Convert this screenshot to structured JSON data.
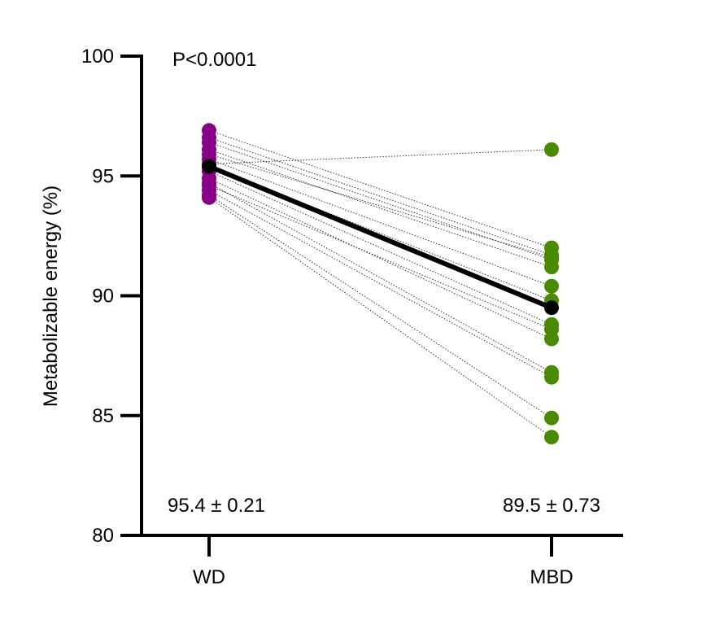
{
  "chart_data": {
    "type": "scatter",
    "subtype": "paired before-after",
    "categories": [
      "WD",
      "MBD"
    ],
    "ylabel": "Metabolizable energy (%)",
    "ylim": [
      80,
      100
    ],
    "yticks": [
      80,
      85,
      90,
      95,
      100
    ],
    "grid": false,
    "annotation": "P<0.0001",
    "summary_labels": [
      "95.4 ± 0.21",
      "89.5 ± 0.73"
    ],
    "means": [
      95.4,
      89.5
    ],
    "pairs": {
      "WD": [
        96.9,
        96.6,
        96.4,
        96.1,
        95.9,
        95.7,
        95.5,
        95.4,
        95.2,
        94.9,
        94.7,
        94.6,
        94.4,
        94.2,
        94.1
      ],
      "MBD": [
        92.0,
        91.7,
        91.5,
        91.2,
        91.6,
        90.4,
        96.1,
        89.8,
        88.8,
        88.2,
        86.8,
        88.6,
        86.6,
        84.9,
        84.1
      ]
    },
    "colors": {
      "WD": "#880088",
      "MBD": "#4a8a00",
      "mean": "#000000"
    }
  }
}
